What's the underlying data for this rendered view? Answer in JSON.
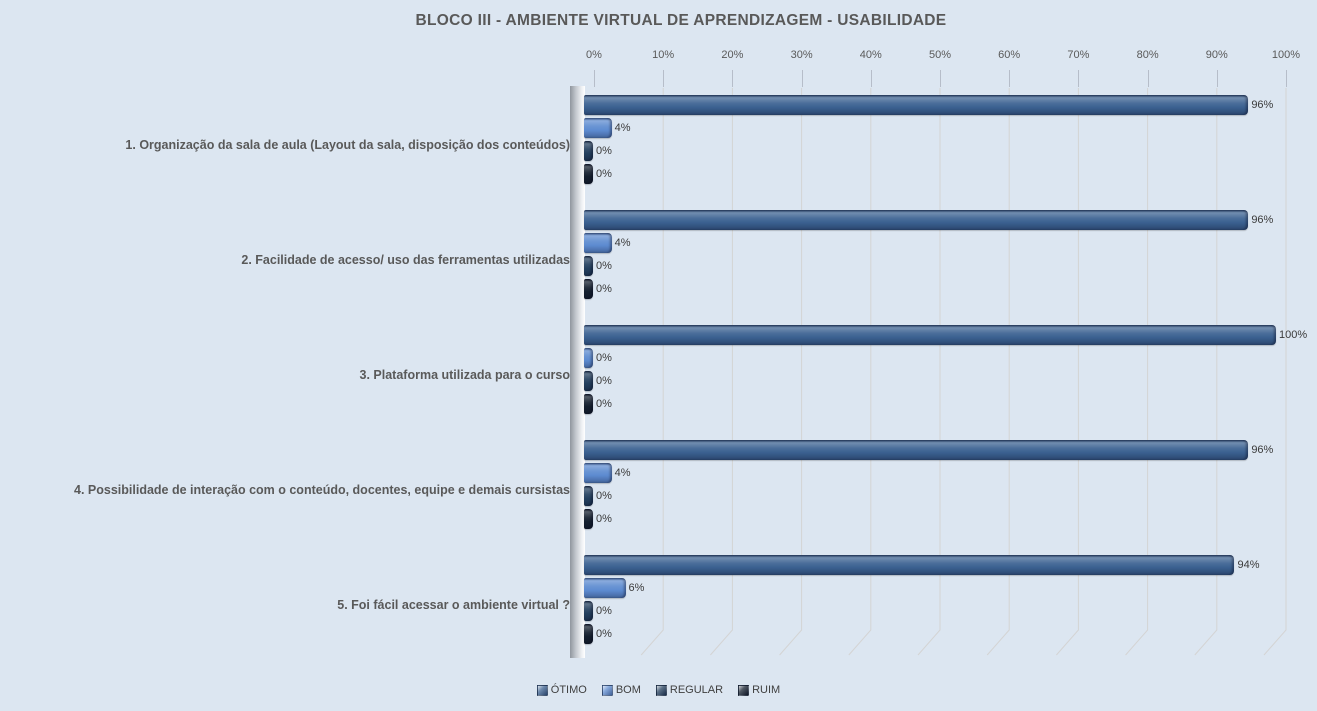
{
  "title": "BLOCO III - AMBIENTE VIRTUAL DE APRENDIZAGEM - USABILIDADE",
  "chart_data": {
    "type": "bar",
    "orientation": "horizontal",
    "title": "BLOCO III - AMBIENTE VIRTUAL DE APRENDIZAGEM - USABILIDADE",
    "categories": [
      "1. Organização da sala de aula (Layout da sala, disposição dos conteúdos)",
      "2. Facilidade de acesso/ uso das ferramentas utilizadas",
      "3. Plataforma utilizada para o curso",
      "4. Possibilidade de interação com o conteúdo, docentes, equipe e demais cursistas",
      "5. Foi fácil acessar o ambiente virtual ?"
    ],
    "series": [
      {
        "name": "ÓTIMO",
        "color": "#3b6191",
        "values": [
          96,
          96,
          100,
          96,
          94
        ]
      },
      {
        "name": "BOM",
        "color": "#5d8bd0",
        "values": [
          4,
          4,
          0,
          4,
          6
        ]
      },
      {
        "name": "REGULAR",
        "color": "#24405f",
        "values": [
          0,
          0,
          0,
          0,
          0
        ]
      },
      {
        "name": "RUIM",
        "color": "#15202f",
        "values": [
          0,
          0,
          0,
          0,
          0
        ]
      }
    ],
    "data_label_suffix": "%",
    "xlim": [
      0,
      100
    ],
    "x_ticks": [
      "0%",
      "10%",
      "20%",
      "30%",
      "40%",
      "50%",
      "60%",
      "70%",
      "80%",
      "90%",
      "100%"
    ],
    "axis_position": "top",
    "grid": true,
    "legend_position": "bottom",
    "colors": {
      "background": "#dce6f1",
      "title_text": "#595959",
      "axis_text": "#595959",
      "gridline": "#d4d4d4"
    }
  }
}
